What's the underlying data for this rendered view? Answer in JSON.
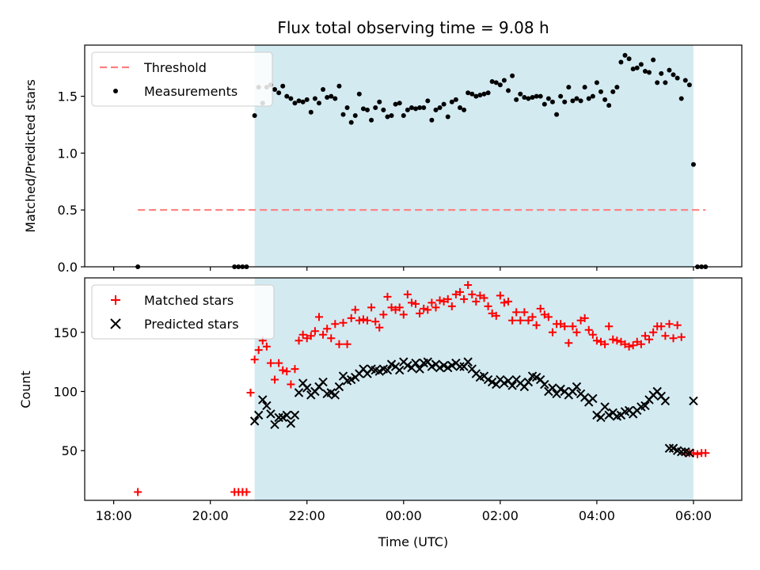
{
  "chart_data": [
    {
      "type": "scatter",
      "title": "Flux total observing time = 9.08 h",
      "xlabel": "",
      "ylabel": "Matched/Predicted stars",
      "ylim": [
        0,
        1.95
      ],
      "yticks": [
        "0.0",
        "0.5",
        "1.0",
        "1.5"
      ],
      "ytick_values": [
        0,
        0.5,
        1.0,
        1.5
      ],
      "xlim": [
        -6.6,
        7.0
      ],
      "shaded_span": [
        -3.083,
        6.0
      ],
      "shaded_color": "#d3eaf1",
      "legend": {
        "location": "upper left",
        "entries": [
          "Threshold",
          "Measurements"
        ]
      },
      "series": [
        {
          "name": "Threshold",
          "kind": "dashed-line",
          "color": "#ff7f7f",
          "x": [
            -5.5,
            6.25
          ],
          "y": [
            0.5,
            0.5
          ]
        },
        {
          "name": "Measurements",
          "kind": "dots",
          "color": "#000000",
          "x": [
            -5.5,
            -3.5,
            -3.417,
            -3.333,
            -3.25,
            -3.083,
            -3.0,
            -2.917,
            -2.833,
            -2.75,
            -2.667,
            -2.583,
            -2.5,
            -2.417,
            -2.333,
            -2.25,
            -2.167,
            -2.083,
            -2.0,
            -1.917,
            -1.833,
            -1.75,
            -1.667,
            -1.583,
            -1.5,
            -1.417,
            -1.333,
            -1.25,
            -1.167,
            -1.083,
            -1.0,
            -0.917,
            -0.833,
            -0.75,
            -0.667,
            -0.583,
            -0.5,
            -0.417,
            -0.333,
            -0.25,
            -0.167,
            -0.083,
            0.0,
            0.083,
            0.167,
            0.25,
            0.333,
            0.417,
            0.5,
            0.583,
            0.667,
            0.75,
            0.833,
            0.917,
            1.0,
            1.083,
            1.167,
            1.25,
            1.333,
            1.417,
            1.5,
            1.583,
            1.667,
            1.75,
            1.833,
            1.917,
            2.0,
            2.083,
            2.167,
            2.25,
            2.333,
            2.417,
            2.5,
            2.583,
            2.667,
            2.75,
            2.833,
            2.917,
            3.0,
            3.083,
            3.167,
            3.25,
            3.333,
            3.417,
            3.5,
            3.583,
            3.667,
            3.75,
            3.833,
            3.917,
            4.0,
            4.083,
            4.167,
            4.25,
            4.333,
            4.417,
            4.5,
            4.583,
            4.667,
            4.75,
            4.833,
            4.917,
            5.0,
            5.083,
            5.167,
            5.25,
            5.333,
            5.417,
            5.5,
            5.583,
            5.667,
            5.75,
            5.833,
            5.917,
            6.0,
            6.083,
            6.167,
            6.25
          ],
          "y": [
            0.0,
            0.0,
            0.0,
            0.0,
            0.0,
            1.33,
            1.58,
            1.44,
            1.58,
            1.6,
            1.56,
            1.53,
            1.59,
            1.5,
            1.48,
            1.44,
            1.46,
            1.45,
            1.47,
            1.36,
            1.48,
            1.44,
            1.56,
            1.49,
            1.5,
            1.48,
            1.59,
            1.34,
            1.4,
            1.27,
            1.33,
            1.52,
            1.39,
            1.38,
            1.29,
            1.4,
            1.45,
            1.38,
            1.32,
            1.33,
            1.43,
            1.44,
            1.33,
            1.38,
            1.4,
            1.39,
            1.4,
            1.4,
            1.46,
            1.29,
            1.38,
            1.4,
            1.43,
            1.32,
            1.45,
            1.47,
            1.4,
            1.38,
            1.53,
            1.52,
            1.5,
            1.51,
            1.52,
            1.53,
            1.63,
            1.62,
            1.6,
            1.64,
            1.55,
            1.68,
            1.47,
            1.52,
            1.49,
            1.48,
            1.49,
            1.5,
            1.5,
            1.43,
            1.48,
            1.45,
            1.34,
            1.5,
            1.45,
            1.58,
            1.46,
            1.48,
            1.46,
            1.58,
            1.48,
            1.5,
            1.62,
            1.54,
            1.47,
            1.42,
            1.54,
            1.58,
            1.8,
            1.86,
            1.83,
            1.74,
            1.75,
            1.78,
            1.72,
            1.71,
            1.82,
            1.62,
            1.7,
            1.62,
            1.73,
            1.69,
            1.66,
            1.48,
            1.64,
            1.6,
            0.9,
            0.0,
            0.0,
            0.0
          ]
        }
      ]
    },
    {
      "type": "scatter",
      "xlabel": "Time (UTC)",
      "ylabel": "Count",
      "ylim": [
        8,
        196
      ],
      "yticks": [
        "50",
        "100",
        "150"
      ],
      "ytick_values": [
        50,
        100,
        150
      ],
      "xlim": [
        -6.6,
        7.0
      ],
      "xticks": [
        "18:00",
        "20:00",
        "22:00",
        "00:00",
        "02:00",
        "04:00",
        "06:00"
      ],
      "xtick_values": [
        -6,
        -4,
        -2,
        0,
        2,
        4,
        6
      ],
      "shaded_span": [
        -3.083,
        6.0
      ],
      "shaded_color": "#d3eaf1",
      "legend": {
        "location": "upper left",
        "entries": [
          "Matched stars",
          "Predicted stars"
        ]
      },
      "series": [
        {
          "name": "Matched stars",
          "kind": "plus",
          "color": "#ff0000",
          "x": [
            -5.5,
            -3.5,
            -3.417,
            -3.333,
            -3.25,
            -3.167,
            -3.083,
            -3.0,
            -2.917,
            -2.833,
            -2.75,
            -2.667,
            -2.583,
            -2.5,
            -2.417,
            -2.333,
            -2.25,
            -2.167,
            -2.083,
            -2.0,
            -1.917,
            -1.833,
            -1.75,
            -1.667,
            -1.583,
            -1.5,
            -1.417,
            -1.333,
            -1.25,
            -1.167,
            -1.083,
            -1.0,
            -0.917,
            -0.833,
            -0.75,
            -0.667,
            -0.583,
            -0.5,
            -0.417,
            -0.333,
            -0.25,
            -0.167,
            -0.083,
            0.0,
            0.083,
            0.167,
            0.25,
            0.333,
            0.417,
            0.5,
            0.583,
            0.667,
            0.75,
            0.833,
            0.917,
            1.0,
            1.083,
            1.167,
            1.25,
            1.333,
            1.417,
            1.5,
            1.583,
            1.667,
            1.75,
            1.833,
            1.917,
            2.0,
            2.083,
            2.167,
            2.25,
            2.333,
            2.417,
            2.5,
            2.583,
            2.667,
            2.75,
            2.833,
            2.917,
            3.0,
            3.083,
            3.167,
            3.25,
            3.333,
            3.417,
            3.5,
            3.583,
            3.667,
            3.75,
            3.833,
            3.917,
            4.0,
            4.083,
            4.167,
            4.25,
            4.333,
            4.417,
            4.5,
            4.583,
            4.667,
            4.75,
            4.833,
            4.917,
            5.0,
            5.083,
            5.167,
            5.25,
            5.333,
            5.417,
            5.5,
            5.583,
            5.667,
            5.75,
            5.833,
            5.917,
            6.0,
            6.083,
            6.167,
            6.25
          ],
          "y": [
            15,
            15,
            15,
            15,
            15,
            99,
            127,
            135,
            143,
            138,
            124,
            110,
            124,
            118,
            117,
            106,
            119,
            143,
            148,
            145,
            147,
            151,
            163,
            148,
            153,
            145,
            157,
            140,
            158,
            140,
            162,
            169,
            160,
            161,
            160,
            171,
            159,
            154,
            165,
            180,
            171,
            169,
            171,
            165,
            182,
            175,
            174,
            166,
            170,
            169,
            175,
            171,
            177,
            176,
            178,
            172,
            182,
            184,
            178,
            190,
            182,
            176,
            181,
            179,
            172,
            166,
            164,
            181,
            175,
            176,
            160,
            167,
            160,
            167,
            160,
            163,
            156,
            170,
            165,
            163,
            150,
            157,
            157,
            155,
            141,
            155,
            150,
            160,
            162,
            152,
            148,
            143,
            142,
            140,
            155,
            144,
            143,
            142,
            140,
            138,
            139,
            142,
            140,
            147,
            144,
            150,
            155,
            155,
            147,
            157,
            145,
            156,
            146,
            48,
            48,
            48,
            47,
            48,
            48
          ],
          "note_skip": 0
        },
        {
          "name": "Predicted stars",
          "kind": "x",
          "color": "#000000",
          "x": [
            -3.083,
            -3.0,
            -2.917,
            -2.833,
            -2.75,
            -2.667,
            -2.583,
            -2.5,
            -2.417,
            -2.333,
            -2.25,
            -2.167,
            -2.083,
            -2.0,
            -1.917,
            -1.833,
            -1.75,
            -1.667,
            -1.583,
            -1.5,
            -1.417,
            -1.333,
            -1.25,
            -1.167,
            -1.083,
            -1.0,
            -0.917,
            -0.833,
            -0.75,
            -0.667,
            -0.583,
            -0.5,
            -0.417,
            -0.333,
            -0.25,
            -0.167,
            -0.083,
            0.0,
            0.083,
            0.167,
            0.25,
            0.333,
            0.417,
            0.5,
            0.583,
            0.667,
            0.75,
            0.833,
            0.917,
            1.0,
            1.083,
            1.167,
            1.25,
            1.333,
            1.417,
            1.5,
            1.583,
            1.667,
            1.75,
            1.833,
            1.917,
            2.0,
            2.083,
            2.167,
            2.25,
            2.333,
            2.417,
            2.5,
            2.583,
            2.667,
            2.75,
            2.833,
            2.917,
            3.0,
            3.083,
            3.167,
            3.25,
            3.333,
            3.417,
            3.5,
            3.583,
            3.667,
            3.75,
            3.833,
            3.917,
            4.0,
            4.083,
            4.167,
            4.25,
            4.333,
            4.417,
            4.5,
            4.583,
            4.667,
            4.75,
            4.833,
            4.917,
            5.0,
            5.083,
            5.167,
            5.25,
            5.333,
            5.417,
            5.5,
            5.583,
            5.667,
            5.75,
            5.833,
            5.917,
            6.0
          ],
          "y": [
            75,
            80,
            93,
            88,
            81,
            72,
            78,
            78,
            80,
            73,
            80,
            99,
            107,
            103,
            97,
            100,
            104,
            108,
            98,
            99,
            97,
            104,
            113,
            109,
            110,
            112,
            115,
            119,
            115,
            119,
            118,
            117,
            119,
            118,
            123,
            121,
            118,
            125,
            122,
            120,
            124,
            119,
            124,
            125,
            121,
            123,
            120,
            122,
            120,
            122,
            124,
            121,
            121,
            125,
            119,
            115,
            112,
            113,
            110,
            108,
            106,
            110,
            107,
            109,
            105,
            110,
            107,
            104,
            108,
            113,
            112,
            110,
            106,
            100,
            103,
            98,
            102,
            100,
            97,
            100,
            104,
            98,
            95,
            91,
            94,
            80,
            78,
            87,
            80,
            82,
            79,
            80,
            83,
            84,
            81,
            84,
            87,
            88,
            93,
            97,
            100,
            96,
            92,
            52,
            52,
            50,
            49,
            49,
            48,
            92
          ]
        }
      ]
    }
  ]
}
